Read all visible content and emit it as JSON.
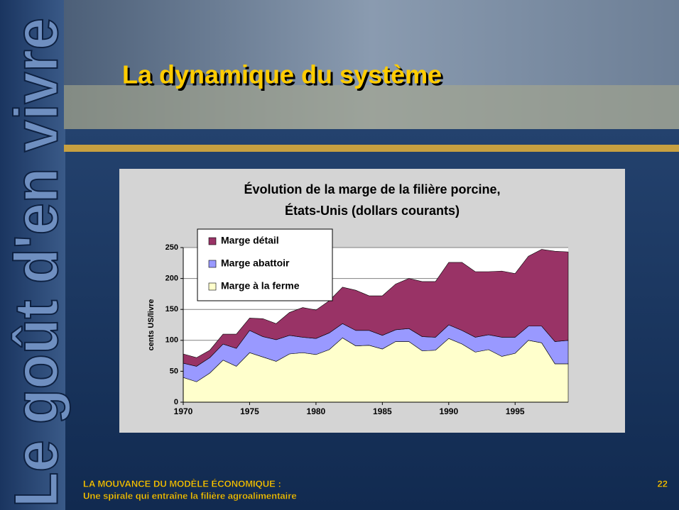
{
  "slide": {
    "title": "La dynamique du système",
    "side_text": "Le goût d'en vivre",
    "footer_line1": "LA MOUVANCE DU MODÈLE ÉCONOMIQUE :",
    "footer_line2": "Une spirale qui entraîne la filière agroalimentaire",
    "page_number": 22
  },
  "chart_data": {
    "type": "stacked-area",
    "title": [
      "Évolution de la marge de la filière porcine,",
      "États-Unis (dollars courants)"
    ],
    "y_label": "cents US/livre",
    "x": [
      1970,
      1971,
      1972,
      1973,
      1974,
      1975,
      1976,
      1977,
      1978,
      1979,
      1980,
      1981,
      1982,
      1983,
      1984,
      1985,
      1986,
      1987,
      1988,
      1989,
      1990,
      1991,
      1992,
      1993,
      1994,
      1995,
      1996,
      1997,
      1998,
      1999
    ],
    "xlim": [
      1970,
      1999
    ],
    "xticks": [
      1970,
      1975,
      1980,
      1985,
      1990,
      1995
    ],
    "ylim": [
      0,
      250
    ],
    "yticks": [
      0,
      50,
      100,
      150,
      200,
      250
    ],
    "grid": true,
    "legend": "upper-left",
    "series": [
      {
        "name": "Marge à la ferme",
        "color": "#ffffcc",
        "values": [
          40,
          33,
          47,
          68,
          58,
          80,
          73,
          66,
          78,
          80,
          77,
          85,
          104,
          91,
          92,
          86,
          98,
          98,
          83,
          84,
          103,
          94,
          81,
          85,
          74,
          79,
          100,
          96,
          62,
          62
        ]
      },
      {
        "name": "Marge abattoir",
        "color": "#9999ff",
        "values": [
          23,
          25,
          25,
          26,
          29,
          36,
          33,
          35,
          30,
          25,
          26,
          27,
          23,
          25,
          24,
          22,
          19,
          21,
          23,
          21,
          22,
          22,
          24,
          24,
          31,
          26,
          23,
          27,
          36,
          38
        ]
      },
      {
        "name": "Marge détail",
        "color": "#993366",
        "values": [
          15,
          14,
          12,
          16,
          23,
          20,
          29,
          26,
          37,
          48,
          46,
          52,
          59,
          65,
          56,
          64,
          74,
          81,
          89,
          90,
          101,
          110,
          106,
          102,
          107,
          103,
          113,
          124,
          146,
          143
        ]
      }
    ]
  }
}
